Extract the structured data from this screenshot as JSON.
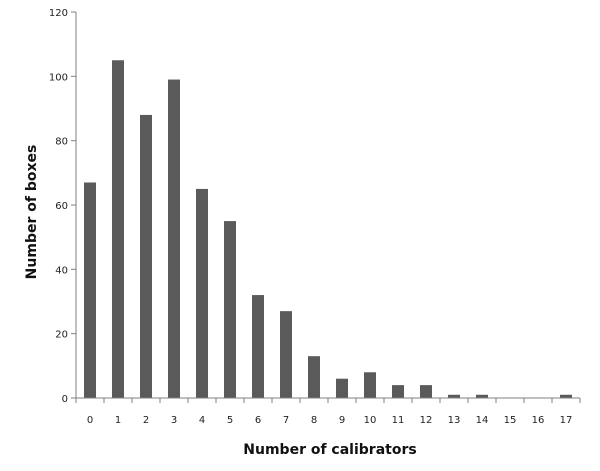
{
  "chart_data": {
    "type": "bar",
    "categories": [
      "0",
      "1",
      "2",
      "3",
      "4",
      "5",
      "6",
      "7",
      "8",
      "9",
      "10",
      "11",
      "12",
      "13",
      "14",
      "15",
      "16",
      "17"
    ],
    "values": [
      67,
      105,
      88,
      99,
      65,
      55,
      32,
      27,
      13,
      6,
      8,
      4,
      4,
      1,
      1,
      0,
      0,
      1
    ],
    "title": "",
    "xlabel": "Number of calibrators",
    "ylabel": "Number of boxes",
    "ylim": [
      0,
      120
    ],
    "yticks": [
      "0",
      "20",
      "40",
      "60",
      "80",
      "100",
      "120"
    ],
    "grid": false,
    "legend": "none",
    "bar_color": "#5a5a5a",
    "axis_color": "#7f7f7f"
  }
}
